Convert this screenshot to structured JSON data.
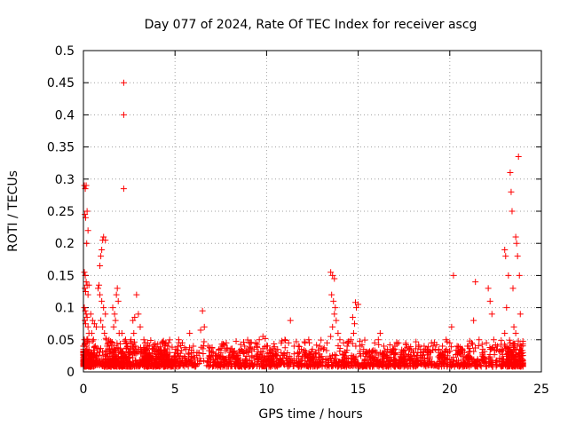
{
  "chart_data": {
    "type": "scatter",
    "title": "Day 077 of 2024, Rate Of TEC Index for receiver ascg",
    "xlabel": "GPS time / hours",
    "ylabel": "ROTI / TECUs",
    "xlim": [
      0,
      25
    ],
    "ylim": [
      0,
      0.5
    ],
    "xticks": [
      0,
      5,
      10,
      15,
      20,
      25
    ],
    "yticks": [
      0,
      0.05,
      0.1,
      0.15,
      0.2,
      0.25,
      0.3,
      0.35,
      0.4,
      0.45,
      0.5
    ],
    "xtick_labels": [
      "0",
      "5",
      "10",
      "15",
      "20",
      "25"
    ],
    "ytick_labels": [
      "0",
      "0.05",
      "0.1",
      "0.15",
      "0.2",
      "0.25",
      "0.3",
      "0.35",
      "0.4",
      "0.45",
      "0.5"
    ],
    "grid": true,
    "marker": "plus",
    "color": "#ff0000",
    "series": [
      {
        "name": "ROTI",
        "points": [
          [
            0.05,
            0.29
          ],
          [
            0.1,
            0.285
          ],
          [
            0.15,
            0.29
          ],
          [
            0.08,
            0.245
          ],
          [
            0.12,
            0.24
          ],
          [
            0.2,
            0.25
          ],
          [
            0.25,
            0.22
          ],
          [
            0.18,
            0.2
          ],
          [
            0.05,
            0.155
          ],
          [
            0.1,
            0.15
          ],
          [
            0.15,
            0.14
          ],
          [
            0.2,
            0.135
          ],
          [
            0.08,
            0.13
          ],
          [
            0.12,
            0.125
          ],
          [
            0.25,
            0.12
          ],
          [
            0.3,
            0.135
          ],
          [
            0.05,
            0.1
          ],
          [
            0.1,
            0.095
          ],
          [
            0.15,
            0.09
          ],
          [
            0.2,
            0.085
          ],
          [
            0.08,
            0.08
          ],
          [
            0.12,
            0.075
          ],
          [
            0.25,
            0.07
          ],
          [
            0.3,
            0.06
          ],
          [
            0.05,
            0.05
          ],
          [
            0.1,
            0.045
          ],
          [
            0.15,
            0.04
          ],
          [
            0.2,
            0.035
          ],
          [
            0.25,
            0.03
          ],
          [
            0.3,
            0.025
          ],
          [
            0.05,
            0.02
          ],
          [
            0.1,
            0.015
          ],
          [
            0.4,
            0.09
          ],
          [
            0.5,
            0.08
          ],
          [
            0.6,
            0.075
          ],
          [
            0.7,
            0.07
          ],
          [
            0.45,
            0.06
          ],
          [
            0.55,
            0.05
          ],
          [
            0.65,
            0.04
          ],
          [
            0.75,
            0.03
          ],
          [
            0.8,
            0.13
          ],
          [
            0.85,
            0.135
          ],
          [
            0.9,
            0.165
          ],
          [
            0.95,
            0.18
          ],
          [
            1.0,
            0.19
          ],
          [
            1.05,
            0.205
          ],
          [
            1.1,
            0.21
          ],
          [
            1.2,
            0.205
          ],
          [
            0.9,
            0.12
          ],
          [
            1.0,
            0.11
          ],
          [
            1.1,
            0.1
          ],
          [
            1.2,
            0.09
          ],
          [
            0.95,
            0.08
          ],
          [
            1.05,
            0.07
          ],
          [
            1.15,
            0.06
          ],
          [
            1.25,
            0.05
          ],
          [
            1.3,
            0.04
          ],
          [
            1.4,
            0.035
          ],
          [
            1.5,
            0.045
          ],
          [
            1.6,
            0.03
          ],
          [
            1.7,
            0.025
          ],
          [
            1.8,
            0.02
          ],
          [
            1.9,
            0.03
          ],
          [
            1.35,
            0.02
          ],
          [
            1.6,
            0.1
          ],
          [
            1.7,
            0.09
          ],
          [
            1.8,
            0.12
          ],
          [
            1.85,
            0.13
          ],
          [
            1.9,
            0.11
          ],
          [
            1.75,
            0.08
          ],
          [
            1.65,
            0.07
          ],
          [
            1.95,
            0.06
          ],
          [
            2.2,
            0.45
          ],
          [
            2.2,
            0.4
          ],
          [
            2.2,
            0.285
          ],
          [
            2.1,
            0.06
          ],
          [
            2.3,
            0.05
          ],
          [
            2.4,
            0.04
          ],
          [
            2.5,
            0.03
          ],
          [
            2.6,
            0.05
          ],
          [
            2.7,
            0.08
          ],
          [
            2.8,
            0.085
          ],
          [
            2.9,
            0.12
          ],
          [
            3.0,
            0.09
          ],
          [
            3.1,
            0.07
          ],
          [
            2.75,
            0.06
          ],
          [
            2.85,
            0.04
          ],
          [
            2.95,
            0.03
          ],
          [
            3.2,
            0.03
          ],
          [
            3.4,
            0.025
          ],
          [
            3.6,
            0.04
          ],
          [
            3.8,
            0.035
          ],
          [
            4.0,
            0.02
          ],
          [
            4.2,
            0.03
          ],
          [
            4.4,
            0.025
          ],
          [
            4.6,
            0.04
          ],
          [
            3.3,
            0.05
          ],
          [
            3.5,
            0.045
          ],
          [
            3.7,
            0.02
          ],
          [
            3.9,
            0.015
          ],
          [
            4.1,
            0.035
          ],
          [
            4.3,
            0.045
          ],
          [
            4.5,
            0.015
          ],
          [
            4.7,
            0.03
          ],
          [
            4.8,
            0.02
          ],
          [
            5.0,
            0.03
          ],
          [
            5.2,
            0.05
          ],
          [
            5.4,
            0.045
          ],
          [
            5.6,
            0.035
          ],
          [
            5.8,
            0.06
          ],
          [
            6.0,
            0.04
          ],
          [
            6.2,
            0.03
          ],
          [
            6.4,
            0.065
          ],
          [
            6.5,
            0.095
          ],
          [
            6.6,
            0.07
          ],
          [
            6.8,
            0.04
          ],
          [
            7.0,
            0.03
          ],
          [
            7.2,
            0.025
          ],
          [
            7.4,
            0.035
          ],
          [
            7.6,
            0.04
          ],
          [
            7.8,
            0.045
          ],
          [
            8.0,
            0.03
          ],
          [
            8.2,
            0.025
          ],
          [
            8.4,
            0.02
          ],
          [
            8.6,
            0.035
          ],
          [
            8.8,
            0.04
          ],
          [
            9.0,
            0.03
          ],
          [
            9.2,
            0.025
          ],
          [
            9.4,
            0.045
          ],
          [
            9.6,
            0.05
          ],
          [
            9.8,
            0.055
          ],
          [
            10.0,
            0.04
          ],
          [
            10.2,
            0.03
          ],
          [
            10.4,
            0.025
          ],
          [
            10.6,
            0.035
          ],
          [
            10.8,
            0.045
          ],
          [
            11.0,
            0.05
          ],
          [
            11.2,
            0.045
          ],
          [
            11.3,
            0.08
          ],
          [
            11.5,
            0.04
          ],
          [
            11.7,
            0.03
          ],
          [
            11.9,
            0.035
          ],
          [
            12.1,
            0.045
          ],
          [
            12.3,
            0.05
          ],
          [
            12.5,
            0.035
          ],
          [
            12.7,
            0.03
          ],
          [
            12.9,
            0.04
          ],
          [
            13.1,
            0.035
          ],
          [
            13.3,
            0.045
          ],
          [
            13.5,
            0.055
          ],
          [
            13.6,
            0.07
          ],
          [
            13.7,
            0.09
          ],
          [
            13.5,
            0.155
          ],
          [
            13.6,
            0.15
          ],
          [
            13.7,
            0.145
          ],
          [
            13.55,
            0.12
          ],
          [
            13.65,
            0.11
          ],
          [
            13.75,
            0.1
          ],
          [
            13.8,
            0.08
          ],
          [
            13.9,
            0.06
          ],
          [
            14.0,
            0.05
          ],
          [
            14.2,
            0.045
          ],
          [
            14.4,
            0.04
          ],
          [
            14.6,
            0.05
          ],
          [
            14.8,
            0.075
          ],
          [
            14.9,
            0.1
          ],
          [
            14.85,
            0.108
          ],
          [
            15.0,
            0.105
          ],
          [
            14.7,
            0.085
          ],
          [
            14.75,
            0.06
          ],
          [
            15.1,
            0.04
          ],
          [
            15.3,
            0.035
          ],
          [
            15.5,
            0.03
          ],
          [
            15.7,
            0.025
          ],
          [
            15.9,
            0.045
          ],
          [
            16.1,
            0.05
          ],
          [
            16.2,
            0.06
          ],
          [
            16.4,
            0.04
          ],
          [
            16.6,
            0.035
          ],
          [
            16.8,
            0.03
          ],
          [
            17.0,
            0.04
          ],
          [
            17.2,
            0.045
          ],
          [
            17.4,
            0.03
          ],
          [
            17.6,
            0.025
          ],
          [
            17.8,
            0.035
          ],
          [
            18.0,
            0.03
          ],
          [
            18.2,
            0.025
          ],
          [
            18.4,
            0.035
          ],
          [
            18.6,
            0.04
          ],
          [
            18.8,
            0.03
          ],
          [
            19.0,
            0.045
          ],
          [
            19.2,
            0.035
          ],
          [
            19.4,
            0.03
          ],
          [
            19.6,
            0.04
          ],
          [
            19.8,
            0.05
          ],
          [
            20.0,
            0.045
          ],
          [
            20.2,
            0.15
          ],
          [
            20.1,
            0.07
          ],
          [
            20.4,
            0.04
          ],
          [
            20.6,
            0.035
          ],
          [
            20.8,
            0.03
          ],
          [
            21.0,
            0.04
          ],
          [
            21.2,
            0.045
          ],
          [
            21.4,
            0.14
          ],
          [
            21.3,
            0.08
          ],
          [
            21.6,
            0.05
          ],
          [
            21.8,
            0.035
          ],
          [
            22.0,
            0.045
          ],
          [
            22.1,
            0.13
          ],
          [
            22.2,
            0.11
          ],
          [
            22.3,
            0.09
          ],
          [
            22.4,
            0.05
          ],
          [
            22.6,
            0.04
          ],
          [
            22.8,
            0.035
          ],
          [
            23.0,
            0.06
          ],
          [
            23.1,
            0.1
          ],
          [
            23.0,
            0.19
          ],
          [
            23.05,
            0.18
          ],
          [
            23.2,
            0.15
          ],
          [
            23.3,
            0.31
          ],
          [
            23.35,
            0.28
          ],
          [
            23.4,
            0.25
          ],
          [
            23.45,
            0.13
          ],
          [
            23.5,
            0.07
          ],
          [
            23.6,
            0.21
          ],
          [
            23.65,
            0.2
          ],
          [
            23.7,
            0.18
          ],
          [
            23.75,
            0.335
          ],
          [
            23.8,
            0.15
          ],
          [
            23.85,
            0.09
          ],
          [
            23.6,
            0.06
          ],
          [
            23.7,
            0.04
          ],
          [
            23.2,
            0.03
          ],
          [
            23.4,
            0.025
          ],
          [
            23.6,
            0.02
          ],
          [
            23.8,
            0.03
          ],
          [
            23.9,
            0.04
          ],
          [
            23.95,
            0.025
          ],
          [
            23.5,
            0.035
          ],
          [
            23.3,
            0.045
          ]
        ]
      }
    ]
  }
}
